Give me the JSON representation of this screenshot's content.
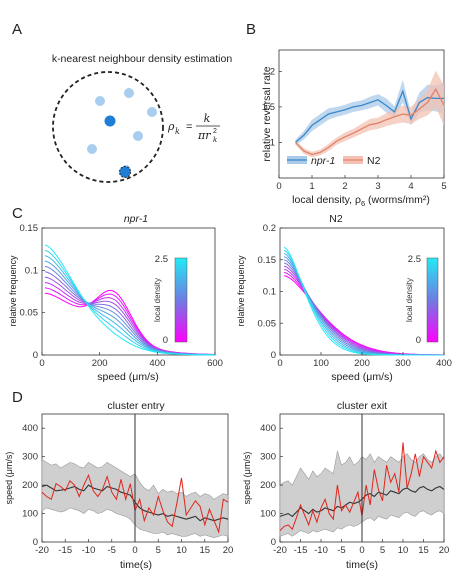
{
  "panel_labels": [
    "A",
    "B",
    "C",
    "D"
  ],
  "panelA": {
    "title": "k-nearest neighbour density estimation",
    "formula_lhs": "ρ",
    "formula_sub": "k",
    "formula_num": "k",
    "formula_den": "πr",
    "formula_den_sub": "k",
    "formula_den_sup": "2",
    "colors": {
      "light_dot": "#a9cdef",
      "focal_dot": "#1f7fd6",
      "ring": "#222222"
    }
  },
  "chart_data": [
    {
      "id": "B",
      "type": "line",
      "xlabel": "local density, ρ",
      "xlabel_sub": "6",
      "xlabel_unit": " (worms/mm²)",
      "ylabel": "relative reversal rate",
      "xlim": [
        0,
        5
      ],
      "ylim": [
        0.5,
        2.3
      ],
      "xticks": [
        "0",
        "1",
        "2",
        "3",
        "4",
        "5"
      ],
      "yticks": [
        "1",
        "1.5",
        "2"
      ],
      "legend_position": "bottom",
      "series": [
        {
          "name": "npr-1",
          "color": "#3a87c8",
          "band": "#a9cbe9",
          "x": [
            0.5,
            0.75,
            1.0,
            1.25,
            1.5,
            1.75,
            2.0,
            2.25,
            2.5,
            2.75,
            3.0,
            3.25,
            3.5,
            3.75,
            4.0,
            4.25,
            4.5,
            4.75,
            5.0
          ],
          "y": [
            1.0,
            1.1,
            1.24,
            1.32,
            1.4,
            1.43,
            1.46,
            1.5,
            1.52,
            1.56,
            1.6,
            1.52,
            1.43,
            1.72,
            1.33,
            1.56,
            1.63,
            1.62,
            1.62
          ],
          "err": [
            0.04,
            0.06,
            0.08,
            0.08,
            0.08,
            0.07,
            0.07,
            0.07,
            0.07,
            0.08,
            0.08,
            0.1,
            0.08,
            0.16,
            0.09,
            0.14,
            0.18,
            0.18,
            0.22
          ]
        },
        {
          "name": "N2",
          "color": "#e0826a",
          "band": "#f3c2b2",
          "x": [
            0.5,
            0.75,
            1.0,
            1.25,
            1.5,
            1.75,
            2.0,
            2.25,
            2.5,
            2.75,
            3.0,
            3.25,
            3.5,
            3.75,
            4.0,
            4.25,
            4.5,
            4.75,
            5.0
          ],
          "y": [
            1.0,
            0.88,
            0.83,
            0.86,
            0.93,
            1.02,
            1.08,
            1.13,
            1.19,
            1.25,
            1.27,
            1.32,
            1.36,
            1.4,
            1.38,
            1.47,
            1.56,
            1.75,
            1.52
          ],
          "err": [
            0.03,
            0.04,
            0.04,
            0.04,
            0.05,
            0.05,
            0.06,
            0.06,
            0.07,
            0.08,
            0.08,
            0.09,
            0.1,
            0.12,
            0.12,
            0.14,
            0.18,
            0.26,
            0.28
          ]
        }
      ]
    },
    {
      "id": "C-left",
      "type": "line",
      "title": "npr-1",
      "xlabel": "speed (μm/s)",
      "ylabel": "relative frequency",
      "xlim": [
        0,
        600
      ],
      "ylim": [
        0,
        0.15
      ],
      "xticks": [
        "0",
        "200",
        "400",
        "600"
      ],
      "yticks": [
        "0",
        "0.05",
        "0.1",
        "0.15"
      ],
      "colorbar": {
        "label": "local density",
        "max": "2.5",
        "min": "0",
        "top": "#22eaf5",
        "mid": "#6f7ce0",
        "bottom": "#ff00ff"
      },
      "curve_shape": {
        "start_low": 0.13,
        "start_high": 0.073,
        "peak_x": 250,
        "peak_low": 0.003,
        "peak_high": 0.052,
        "decay_low": 170,
        "decay_high": 220,
        "count": 10
      }
    },
    {
      "id": "C-right",
      "type": "line",
      "title": "N2",
      "xlabel": "speed (μm/s)",
      "ylabel": "relative frequency",
      "xlim": [
        0,
        400
      ],
      "ylim": [
        0,
        0.2
      ],
      "xticks": [
        "0",
        "100",
        "200",
        "300",
        "400"
      ],
      "yticks": [
        "0",
        "0.05",
        "0.1",
        "0.15",
        "0.2"
      ],
      "colorbar": {
        "label": "local density",
        "max": "2.5",
        "min": "0",
        "top": "#22eaf5",
        "mid": "#6f7ce0",
        "bottom": "#ff00ff"
      },
      "curve_shape": {
        "start_low": 0.17,
        "start_high": 0.125,
        "decay_low": 75,
        "decay_high": 120,
        "count": 10
      }
    },
    {
      "id": "D-left",
      "type": "line",
      "title": "cluster entry",
      "xlabel": "time(s)",
      "ylabel": "speed (μm/s)",
      "xlim": [
        -20,
        20
      ],
      "ylim": [
        0,
        450
      ],
      "xticks": [
        "-20",
        "-15",
        "-10",
        "-5",
        "0",
        "5",
        "10",
        "15",
        "20"
      ],
      "yticks": [
        "0",
        "100",
        "200",
        "300",
        "400"
      ],
      "event_line_x": 0,
      "x": [
        -20,
        -19,
        -18,
        -17,
        -16,
        -15,
        -14,
        -13,
        -12,
        -11,
        -10,
        -9,
        -8,
        -7,
        -6,
        -5,
        -4,
        -3,
        -2,
        -1,
        0,
        1,
        2,
        3,
        4,
        5,
        6,
        7,
        8,
        9,
        10,
        11,
        12,
        13,
        14,
        15,
        16,
        17,
        18,
        19,
        20
      ],
      "mean": [
        195,
        200,
        190,
        180,
        182,
        185,
        190,
        195,
        185,
        180,
        200,
        190,
        185,
        180,
        195,
        190,
        185,
        175,
        170,
        165,
        140,
        120,
        110,
        105,
        100,
        95,
        100,
        90,
        95,
        90,
        85,
        80,
        85,
        90,
        75,
        85,
        80,
        75,
        80,
        85,
        80
      ],
      "band_low": [
        110,
        120,
        115,
        110,
        105,
        110,
        120,
        115,
        110,
        100,
        115,
        110,
        100,
        105,
        115,
        110,
        100,
        95,
        90,
        80,
        60,
        45,
        40,
        35,
        30,
        30,
        35,
        25,
        30,
        25,
        20,
        20,
        25,
        30,
        20,
        25,
        20,
        15,
        20,
        25,
        20
      ],
      "band_high": [
        290,
        280,
        270,
        275,
        260,
        270,
        280,
        275,
        265,
        260,
        280,
        270,
        260,
        265,
        280,
        270,
        260,
        250,
        240,
        230,
        240,
        210,
        190,
        180,
        200,
        170,
        185,
        175,
        180,
        170,
        175,
        160,
        170,
        175,
        160,
        170,
        165,
        150,
        160,
        170,
        165
      ],
      "example": [
        175,
        160,
        150,
        205,
        195,
        180,
        215,
        200,
        160,
        200,
        235,
        180,
        160,
        185,
        230,
        175,
        150,
        220,
        150,
        205,
        110,
        150,
        75,
        120,
        95,
        160,
        110,
        70,
        55,
        135,
        225,
        95,
        120,
        145,
        125,
        60,
        115,
        75,
        35,
        150,
        140
      ]
    },
    {
      "id": "D-right",
      "type": "line",
      "title": "cluster exit",
      "xlabel": "time(s)",
      "ylabel": "speed (μm/s)",
      "xlim": [
        -20,
        20
      ],
      "ylim": [
        0,
        450
      ],
      "xticks": [
        "-20",
        "-15",
        "-10",
        "-5",
        "0",
        "5",
        "10",
        "15",
        "20"
      ],
      "yticks": [
        "0",
        "100",
        "200",
        "300",
        "400"
      ],
      "event_line_x": 0,
      "x": [
        -20,
        -19,
        -18,
        -17,
        -16,
        -15,
        -14,
        -13,
        -12,
        -11,
        -10,
        -9,
        -8,
        -7,
        -6,
        -5,
        -4,
        -3,
        -2,
        -1,
        0,
        1,
        2,
        3,
        4,
        5,
        6,
        7,
        8,
        9,
        10,
        11,
        12,
        13,
        14,
        15,
        16,
        17,
        18,
        19,
        20
      ],
      "mean": [
        90,
        95,
        100,
        90,
        105,
        120,
        110,
        100,
        115,
        105,
        110,
        120,
        115,
        110,
        125,
        120,
        130,
        140,
        135,
        140,
        150,
        165,
        170,
        160,
        175,
        170,
        165,
        180,
        175,
        170,
        185,
        190,
        180,
        175,
        190,
        195,
        185,
        180,
        190,
        195,
        185
      ],
      "band_low": [
        20,
        25,
        30,
        20,
        30,
        40,
        35,
        30,
        40,
        35,
        40,
        45,
        40,
        35,
        50,
        45,
        55,
        60,
        55,
        60,
        70,
        80,
        85,
        75,
        90,
        85,
        80,
        95,
        90,
        85,
        100,
        105,
        95,
        90,
        105,
        110,
        100,
        95,
        105,
        110,
        100
      ],
      "band_high": [
        200,
        210,
        215,
        200,
        230,
        260,
        240,
        220,
        250,
        230,
        240,
        260,
        250,
        240,
        320,
        270,
        280,
        300,
        270,
        280,
        300,
        290,
        310,
        280,
        300,
        290,
        280,
        300,
        290,
        280,
        300,
        310,
        290,
        280,
        300,
        310,
        290,
        280,
        300,
        310,
        290
      ],
      "example": [
        40,
        55,
        60,
        45,
        85,
        130,
        95,
        60,
        110,
        70,
        120,
        150,
        100,
        80,
        200,
        110,
        130,
        105,
        140,
        175,
        90,
        200,
        130,
        255,
        185,
        145,
        270,
        210,
        240,
        175,
        350,
        190,
        240,
        310,
        230,
        300,
        280,
        260,
        320,
        280,
        300
      ]
    }
  ]
}
